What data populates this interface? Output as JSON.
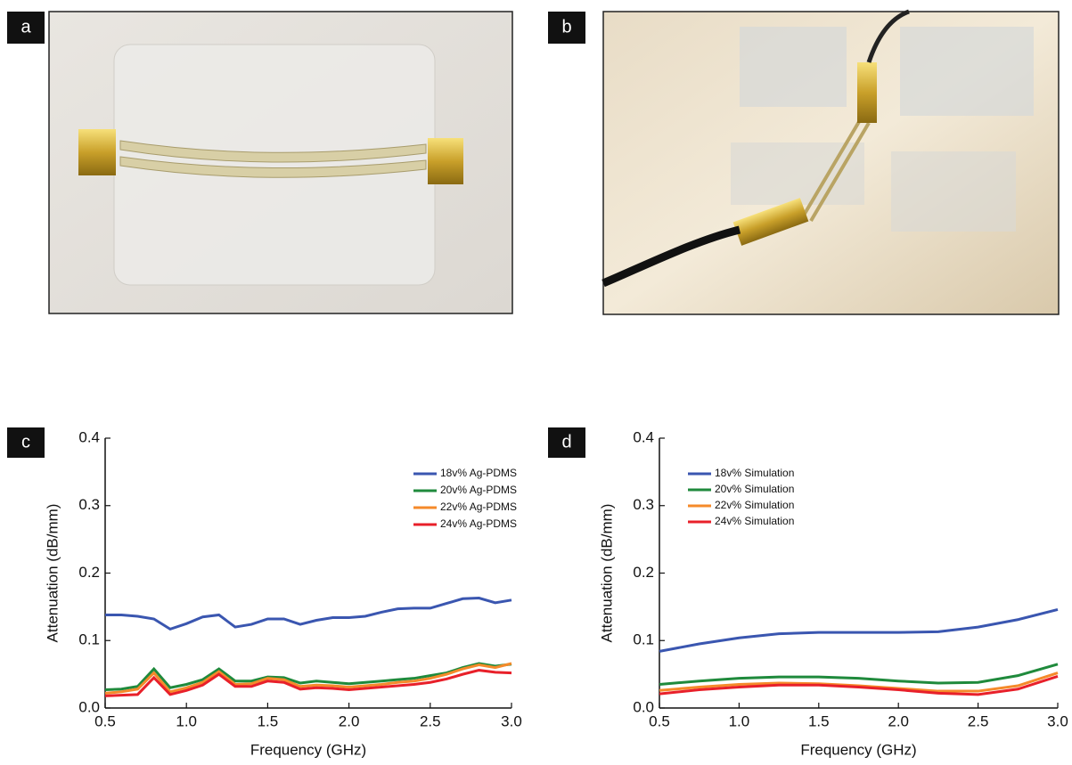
{
  "photos": [
    {
      "label": "a"
    },
    {
      "label": "b"
    }
  ],
  "chart_data": [
    {
      "type": "line",
      "panel_label": "c",
      "x_label": "Frequency (GHz)",
      "y_label": "Attenuation (dB/mm)",
      "x": [
        0.5,
        0.6,
        0.7,
        0.8,
        0.9,
        1.0,
        1.1,
        1.2,
        1.3,
        1.4,
        1.5,
        1.6,
        1.7,
        1.8,
        1.9,
        2.0,
        2.1,
        2.2,
        2.3,
        2.4,
        2.5,
        2.6,
        2.7,
        2.8,
        2.9,
        3.0
      ],
      "series": [
        {
          "name": "18v% Ag-PDMS",
          "color": "#3a56b0",
          "values": [
            0.138,
            0.138,
            0.136,
            0.132,
            0.117,
            0.125,
            0.135,
            0.138,
            0.12,
            0.124,
            0.132,
            0.132,
            0.124,
            0.13,
            0.134,
            0.134,
            0.136,
            0.142,
            0.147,
            0.148,
            0.148,
            0.155,
            0.162,
            0.163,
            0.156,
            0.16
          ]
        },
        {
          "name": "20v% Ag-PDMS",
          "color": "#1f8a3c",
          "values": [
            0.027,
            0.028,
            0.032,
            0.058,
            0.03,
            0.035,
            0.042,
            0.058,
            0.04,
            0.04,
            0.046,
            0.045,
            0.037,
            0.04,
            0.038,
            0.036,
            0.038,
            0.04,
            0.042,
            0.044,
            0.048,
            0.052,
            0.06,
            0.066,
            0.062,
            0.065
          ]
        },
        {
          "name": "22v% Ag-PDMS",
          "color": "#f58a2a",
          "values": [
            0.022,
            0.024,
            0.028,
            0.052,
            0.024,
            0.03,
            0.038,
            0.054,
            0.035,
            0.036,
            0.044,
            0.042,
            0.032,
            0.034,
            0.033,
            0.031,
            0.033,
            0.035,
            0.038,
            0.04,
            0.044,
            0.05,
            0.058,
            0.064,
            0.06,
            0.066
          ]
        },
        {
          "name": "24v% Ag-PDMS",
          "color": "#e8202a",
          "values": [
            0.018,
            0.019,
            0.02,
            0.045,
            0.02,
            0.026,
            0.034,
            0.05,
            0.032,
            0.032,
            0.04,
            0.038,
            0.028,
            0.03,
            0.029,
            0.027,
            0.029,
            0.031,
            0.033,
            0.035,
            0.038,
            0.043,
            0.05,
            0.056,
            0.053,
            0.052
          ]
        }
      ],
      "xlim": [
        0.5,
        3.0
      ],
      "ylim": [
        0,
        0.4
      ],
      "xticks": [
        0.5,
        {
          "value": 1,
          "label": "1.0"
        },
        1.5,
        {
          "value": 2,
          "label": "2.0"
        },
        2.5,
        {
          "value": 3,
          "label": "3.0"
        }
      ],
      "yticks": [
        {
          "value": 0,
          "label": "0.0"
        },
        0.1,
        0.2,
        0.3,
        0.4
      ],
      "legend": "upper-right"
    },
    {
      "type": "line",
      "panel_label": "d",
      "x_label": "Frequency (GHz)",
      "y_label": "Attenuation (dB/mm)",
      "x": [
        0.5,
        0.75,
        1.0,
        1.25,
        1.5,
        1.75,
        2.0,
        2.25,
        2.5,
        2.75,
        3.0
      ],
      "series": [
        {
          "name": "18v% Simulation",
          "color": "#3a56b0",
          "values": [
            0.084,
            0.095,
            0.104,
            0.11,
            0.112,
            0.112,
            0.112,
            0.113,
            0.12,
            0.131,
            0.146
          ]
        },
        {
          "name": "20v% Simulation",
          "color": "#1f8a3c",
          "values": [
            0.035,
            0.04,
            0.044,
            0.046,
            0.046,
            0.044,
            0.04,
            0.037,
            0.038,
            0.048,
            0.065
          ]
        },
        {
          "name": "22v% Simulation",
          "color": "#f58a2a",
          "values": [
            0.026,
            0.031,
            0.035,
            0.037,
            0.036,
            0.033,
            0.029,
            0.025,
            0.025,
            0.033,
            0.052
          ]
        },
        {
          "name": "24v% Simulation",
          "color": "#e8202a",
          "values": [
            0.021,
            0.027,
            0.031,
            0.034,
            0.034,
            0.031,
            0.027,
            0.022,
            0.02,
            0.028,
            0.047
          ]
        }
      ],
      "xlim": [
        0.5,
        3.0
      ],
      "ylim": [
        0,
        0.4
      ],
      "xticks": [
        0.5,
        {
          "value": 1,
          "label": "1.0"
        },
        1.5,
        {
          "value": 2,
          "label": "2.0"
        },
        2.5,
        {
          "value": 3,
          "label": "3.0"
        }
      ],
      "yticks": [
        {
          "value": 0,
          "label": "0.0"
        },
        0.1,
        0.2,
        0.3,
        0.4
      ],
      "legend": "upper-left"
    }
  ]
}
